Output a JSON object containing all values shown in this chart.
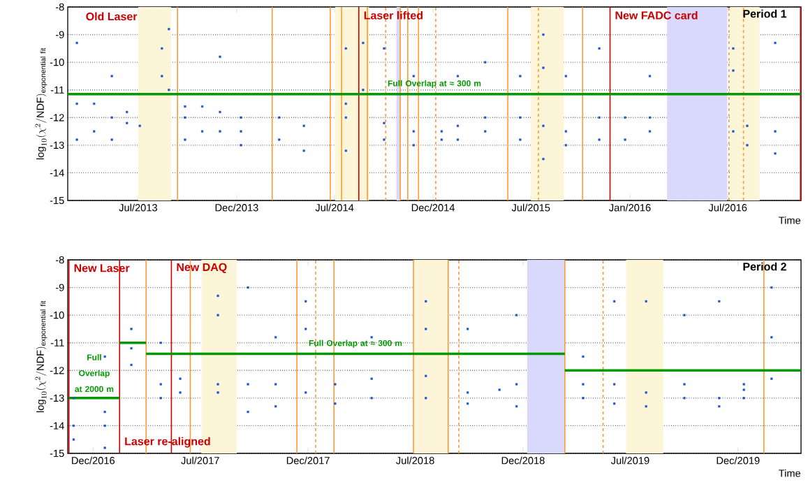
{
  "chart_data": [
    {
      "type": "scatter",
      "title": "Period 1",
      "xlabel": "Time",
      "ylabel": "\\log_{10}(\\chi^{2}/\\mathrm{NDF})_{\\mathrm{exponential\\ fit}}",
      "xlim": [
        "2013-02-20",
        "2016-11-14"
      ],
      "ylim": [
        -15,
        -8
      ],
      "xticks": [
        {
          "value": "2013-07-01",
          "label": "Jul/2013"
        },
        {
          "value": "2013-12-31",
          "label": "Dec/2013"
        },
        {
          "value": "2014-07-01",
          "label": "Jul/2014"
        },
        {
          "value": "2014-12-31",
          "label": "Dec/2014"
        },
        {
          "value": "2015-07-01",
          "label": "Jul/2015"
        },
        {
          "value": "2016-01-01",
          "label": "Jan/2016"
        },
        {
          "value": "2016-07-01",
          "label": "Jul/2016"
        }
      ],
      "yticks": [
        -15,
        -14,
        -13,
        -12,
        -11,
        -10,
        -9,
        -8
      ],
      "grid": "y",
      "series": [
        {
          "type": "scatter",
          "marker": "square",
          "color": "#2255cc",
          "x": [
            "2013-03-09",
            "2013-03-09",
            "2013-03-09",
            "2013-04-10",
            "2013-04-10",
            "2013-05-13",
            "2013-05-13",
            "2013-05-13",
            "2013-06-10",
            "2013-06-10",
            "2013-07-04",
            "2013-08-14",
            "2013-08-14",
            "2013-08-27",
            "2013-08-27",
            "2013-09-26",
            "2013-09-26",
            "2013-09-26",
            "2013-10-28",
            "2013-10-28",
            "2013-11-30",
            "2013-11-30",
            "2013-11-30",
            "2014-01-08",
            "2014-01-08",
            "2014-01-08",
            "2014-03-20",
            "2014-03-20",
            "2014-05-05",
            "2014-05-05",
            "2014-07-22",
            "2014-07-22",
            "2014-07-22",
            "2014-07-22",
            "2014-08-23",
            "2014-08-23",
            "2014-10-01",
            "2014-10-01",
            "2014-10-01",
            "2014-11-25",
            "2014-11-25",
            "2014-11-25",
            "2015-01-16",
            "2015-01-16",
            "2015-02-15",
            "2015-02-15",
            "2015-02-15",
            "2015-04-07",
            "2015-04-07",
            "2015-04-07",
            "2015-06-11",
            "2015-06-11",
            "2015-06-11",
            "2015-07-24",
            "2015-07-24",
            "2015-07-24",
            "2015-07-24",
            "2015-09-04",
            "2015-09-04",
            "2015-09-04",
            "2015-11-05",
            "2015-11-05",
            "2015-11-05",
            "2015-12-23",
            "2015-12-23",
            "2016-02-07",
            "2016-02-07",
            "2016-02-07",
            "2016-07-11",
            "2016-07-11",
            "2016-07-11",
            "2016-08-06",
            "2016-08-06",
            "2016-09-27",
            "2016-09-27",
            "2016-09-27"
          ],
          "values": [
            -9.3,
            -11.5,
            -12.8,
            -11.5,
            -12.5,
            -10.5,
            -12,
            -12.8,
            -11.8,
            -12.2,
            -12.3,
            -9.5,
            -10.5,
            -8.8,
            -11,
            -11.6,
            -12,
            -12.8,
            -11.6,
            -12.5,
            -9.8,
            -11.8,
            -12.5,
            -12,
            -12.5,
            -13,
            -12,
            -12.8,
            -12.3,
            -13.2,
            -9.5,
            -11.5,
            -12,
            -13.2,
            -9.3,
            -11,
            -9.5,
            -12.2,
            -12.8,
            -10.5,
            -12.5,
            -13,
            -12.5,
            -12.8,
            -10.5,
            -12.3,
            -12.8,
            -10,
            -12,
            -12.5,
            -10.5,
            -12,
            -12.8,
            -9,
            -10.2,
            -12.3,
            -13.5,
            -10.5,
            -12.5,
            -13,
            -9.5,
            -12,
            -12.8,
            -12,
            -12.8,
            -10.5,
            -12,
            -12.5,
            -9.5,
            -10.3,
            -12.5,
            -12.3,
            -13,
            -9.3,
            -12.5,
            -13.3
          ]
        },
        {
          "type": "line",
          "name": "Full Overlap at ≈ 300 m",
          "color": "#009900",
          "x": [
            "2013-02-20",
            "2016-11-14"
          ],
          "values": [
            -11.15,
            -11.15
          ]
        }
      ],
      "bands": [
        {
          "axis": "x",
          "from": "2013-07-01",
          "to": "2013-08-31",
          "color": "#fdf5d8"
        },
        {
          "axis": "x",
          "from": "2014-07-02",
          "to": "2014-09-03",
          "color": "#fdf5d8"
        },
        {
          "axis": "x",
          "from": "2014-10-24",
          "to": "2014-10-31",
          "color": "#d9d9fb"
        },
        {
          "axis": "x",
          "from": "2015-07-01",
          "to": "2015-08-31",
          "color": "#fdf5d8"
        },
        {
          "axis": "x",
          "from": "2016-03-10",
          "to": "2016-06-30",
          "color": "#d9d9fb"
        },
        {
          "axis": "x",
          "from": "2016-07-05",
          "to": "2016-08-29",
          "color": "#fdf5d8"
        }
      ],
      "ref_lines": [
        {
          "axis": "x",
          "value": "2013-09-12",
          "color": "#ff9933",
          "line_style": "solid"
        },
        {
          "axis": "x",
          "value": "2014-03-07",
          "color": "#ff9933",
          "line_style": "solid"
        },
        {
          "axis": "x",
          "value": "2014-06-23",
          "color": "#ff9933",
          "line_style": "solid"
        },
        {
          "axis": "x",
          "value": "2014-07-14",
          "color": "#ff9933",
          "line_style": "solid"
        },
        {
          "axis": "x",
          "value": "2014-08-15",
          "color": "#cc0000",
          "line_style": "solid",
          "label": "Laser lifted"
        },
        {
          "axis": "x",
          "value": "2014-08-31",
          "color": "#ff9933",
          "line_style": "solid"
        },
        {
          "axis": "x",
          "value": "2014-10-04",
          "color": "#ff9933",
          "line_style": "dashed"
        },
        {
          "axis": "x",
          "value": "2014-10-31",
          "color": "#ff9933",
          "line_style": "solid"
        },
        {
          "axis": "x",
          "value": "2014-11-14",
          "color": "#ff9933",
          "line_style": "solid"
        },
        {
          "axis": "x",
          "value": "2014-12-04",
          "color": "#ff9933",
          "line_style": "solid"
        },
        {
          "axis": "x",
          "value": "2015-01-05",
          "color": "#ff9933",
          "line_style": "dashed"
        },
        {
          "axis": "x",
          "value": "2015-05-19",
          "color": "#ff9933",
          "line_style": "solid"
        },
        {
          "axis": "x",
          "value": "2015-07-15",
          "color": "#ff9933",
          "line_style": "dashed"
        },
        {
          "axis": "x",
          "value": "2015-10-05",
          "color": "#ff9933",
          "line_style": "solid"
        },
        {
          "axis": "x",
          "value": "2015-11-25",
          "color": "#cc0000",
          "line_style": "solid",
          "label": "New FADC card"
        },
        {
          "axis": "x",
          "value": "2016-07-03",
          "color": "#ff9933",
          "line_style": "dashed"
        },
        {
          "axis": "x",
          "value": "2016-07-30",
          "color": "#ff9933",
          "line_style": "dashed"
        },
        {
          "axis": "x",
          "value": "2016-11-13",
          "color": "#cc0000",
          "line_style": "solid"
        }
      ],
      "annotations": [
        "Old Laser"
      ]
    },
    {
      "type": "scatter",
      "title": "Period 2",
      "xlabel": "Time",
      "ylabel": "\\log_{10}(\\chi^{2}/\\mathrm{NDF})_{\\mathrm{exponential\\ fit}}",
      "xlim": [
        "2016-11-18",
        "2020-04-16"
      ],
      "ylim": [
        -15,
        -8
      ],
      "xticks": [
        {
          "value": "2016-12-31",
          "label": "Dec/2016"
        },
        {
          "value": "2017-07-01",
          "label": "Jul/2017"
        },
        {
          "value": "2017-12-31",
          "label": "Dec/2017"
        },
        {
          "value": "2018-07-01",
          "label": "Jul/2018"
        },
        {
          "value": "2018-12-31",
          "label": "Dec/2018"
        },
        {
          "value": "2019-07-01",
          "label": "Jul/2019"
        },
        {
          "value": "2019-12-31",
          "label": "Dec/2019"
        }
      ],
      "yticks": [
        -15,
        -14,
        -13,
        -12,
        -11,
        -10,
        -9,
        -8
      ],
      "grid": "y",
      "series": [
        {
          "type": "scatter",
          "marker": "square",
          "color": "#2255cc",
          "x": [
            "2016-11-28",
            "2016-11-28",
            "2016-11-28",
            "2017-01-20",
            "2017-01-20",
            "2017-01-20",
            "2017-01-20",
            "2017-03-06",
            "2017-03-06",
            "2017-03-06",
            "2017-04-25",
            "2017-04-25",
            "2017-04-25",
            "2017-05-28",
            "2017-05-28",
            "2017-07-31",
            "2017-07-31",
            "2017-07-31",
            "2017-07-31",
            "2017-09-20",
            "2017-09-20",
            "2017-09-20",
            "2017-11-06",
            "2017-11-06",
            "2017-11-06",
            "2017-12-27",
            "2017-12-27",
            "2017-12-27",
            "2018-02-15",
            "2018-02-15",
            "2018-04-18",
            "2018-04-18",
            "2018-04-18",
            "2018-07-19",
            "2018-07-19",
            "2018-07-19",
            "2018-07-19",
            "2018-09-28",
            "2018-09-28",
            "2018-09-28",
            "2018-11-21",
            "2018-12-20",
            "2018-12-20",
            "2018-12-20",
            "2019-04-12",
            "2019-04-12",
            "2019-04-12",
            "2019-06-04",
            "2019-06-04",
            "2019-06-04",
            "2019-07-28",
            "2019-07-28",
            "2019-07-28",
            "2019-10-01",
            "2019-10-01",
            "2019-10-01",
            "2019-11-29",
            "2019-11-29",
            "2019-11-29",
            "2020-01-10",
            "2020-01-10",
            "2020-01-10",
            "2020-02-26",
            "2020-02-26",
            "2020-02-26"
          ],
          "values": [
            -13,
            -14,
            -14.5,
            -11.5,
            -13.5,
            -14,
            -14.8,
            -10.5,
            -11.2,
            -11.8,
            -11,
            -12.5,
            -13,
            -12.3,
            -12.8,
            -9.3,
            -10,
            -12.5,
            -12.8,
            -9,
            -12.5,
            -13.5,
            -10.8,
            -12.5,
            -13.3,
            -9.5,
            -10.5,
            -12.8,
            -12.5,
            -13.2,
            -10.8,
            -12.3,
            -13,
            -9.5,
            -10.5,
            -12.2,
            -13,
            -10.5,
            -12.8,
            -13.2,
            -12.7,
            -10,
            -12.5,
            -13.3,
            -11.5,
            -12.5,
            -13,
            -9.5,
            -12.5,
            -13.2,
            -9.5,
            -12.8,
            -13.3,
            -10,
            -12.5,
            -13,
            -9.5,
            -13,
            -13.3,
            -12.5,
            -12.7,
            -13,
            -9,
            -10.8,
            -12.3
          ]
        },
        {
          "type": "line",
          "name": "Full Overlap at 2000 m",
          "color": "#009900",
          "x": [
            "2016-11-20",
            "2017-02-14"
          ],
          "values": [
            -13,
            -13
          ]
        },
        {
          "type": "line",
          "color": "#009900",
          "x": [
            "2017-02-14",
            "2017-03-31"
          ],
          "values": [
            -11,
            -11
          ]
        },
        {
          "type": "line",
          "name": "Full Overlap at ≈ 300 m",
          "color": "#009900",
          "x": [
            "2017-03-31",
            "2019-03-12"
          ],
          "values": [
            -11.4,
            -11.4
          ]
        },
        {
          "type": "line",
          "color": "#009900",
          "x": [
            "2019-03-12",
            "2020-04-16"
          ],
          "values": [
            -12,
            -12
          ]
        }
      ],
      "bands": [
        {
          "axis": "x",
          "from": "2017-07-03",
          "to": "2017-09-01",
          "color": "#fdf5d8"
        },
        {
          "axis": "x",
          "from": "2018-06-29",
          "to": "2018-08-26",
          "color": "#fdf5d8"
        },
        {
          "axis": "x",
          "from": "2019-01-07",
          "to": "2019-03-11",
          "color": "#d9d9fb"
        },
        {
          "axis": "x",
          "from": "2019-06-24",
          "to": "2019-08-26",
          "color": "#fdf5d8"
        }
      ],
      "ref_lines": [
        {
          "axis": "x",
          "value": "2016-11-20",
          "color": "#cc0000",
          "line_style": "solid",
          "label": "New Laser"
        },
        {
          "axis": "x",
          "value": "2017-02-14",
          "color": "#cc0000",
          "line_style": "solid",
          "label": "Laser re-aligned"
        },
        {
          "axis": "x",
          "value": "2017-03-31",
          "color": "#ff9933",
          "line_style": "solid"
        },
        {
          "axis": "x",
          "value": "2017-05-13",
          "color": "#cc0000",
          "line_style": "solid",
          "label": "New DAQ"
        },
        {
          "axis": "x",
          "value": "2017-06-14",
          "color": "#ff9933",
          "line_style": "solid"
        },
        {
          "axis": "x",
          "value": "2017-12-12",
          "color": "#ff9933",
          "line_style": "solid"
        },
        {
          "axis": "x",
          "value": "2018-01-13",
          "color": "#ff9933",
          "line_style": "dashed"
        },
        {
          "axis": "x",
          "value": "2018-02-13",
          "color": "#ff9933",
          "line_style": "solid"
        },
        {
          "axis": "x",
          "value": "2018-06-28",
          "color": "#ff9933",
          "line_style": "solid"
        },
        {
          "axis": "x",
          "value": "2018-08-26",
          "color": "#ff9933",
          "line_style": "solid"
        },
        {
          "axis": "x",
          "value": "2018-09-13",
          "color": "#ff9933",
          "line_style": "dashed"
        },
        {
          "axis": "x",
          "value": "2019-03-12",
          "color": "#ff9933",
          "line_style": "solid"
        },
        {
          "axis": "x",
          "value": "2019-05-16",
          "color": "#ff9933",
          "line_style": "dashed"
        },
        {
          "axis": "x",
          "value": "2020-02-13",
          "color": "#ff9933",
          "line_style": "solid"
        }
      ]
    }
  ]
}
